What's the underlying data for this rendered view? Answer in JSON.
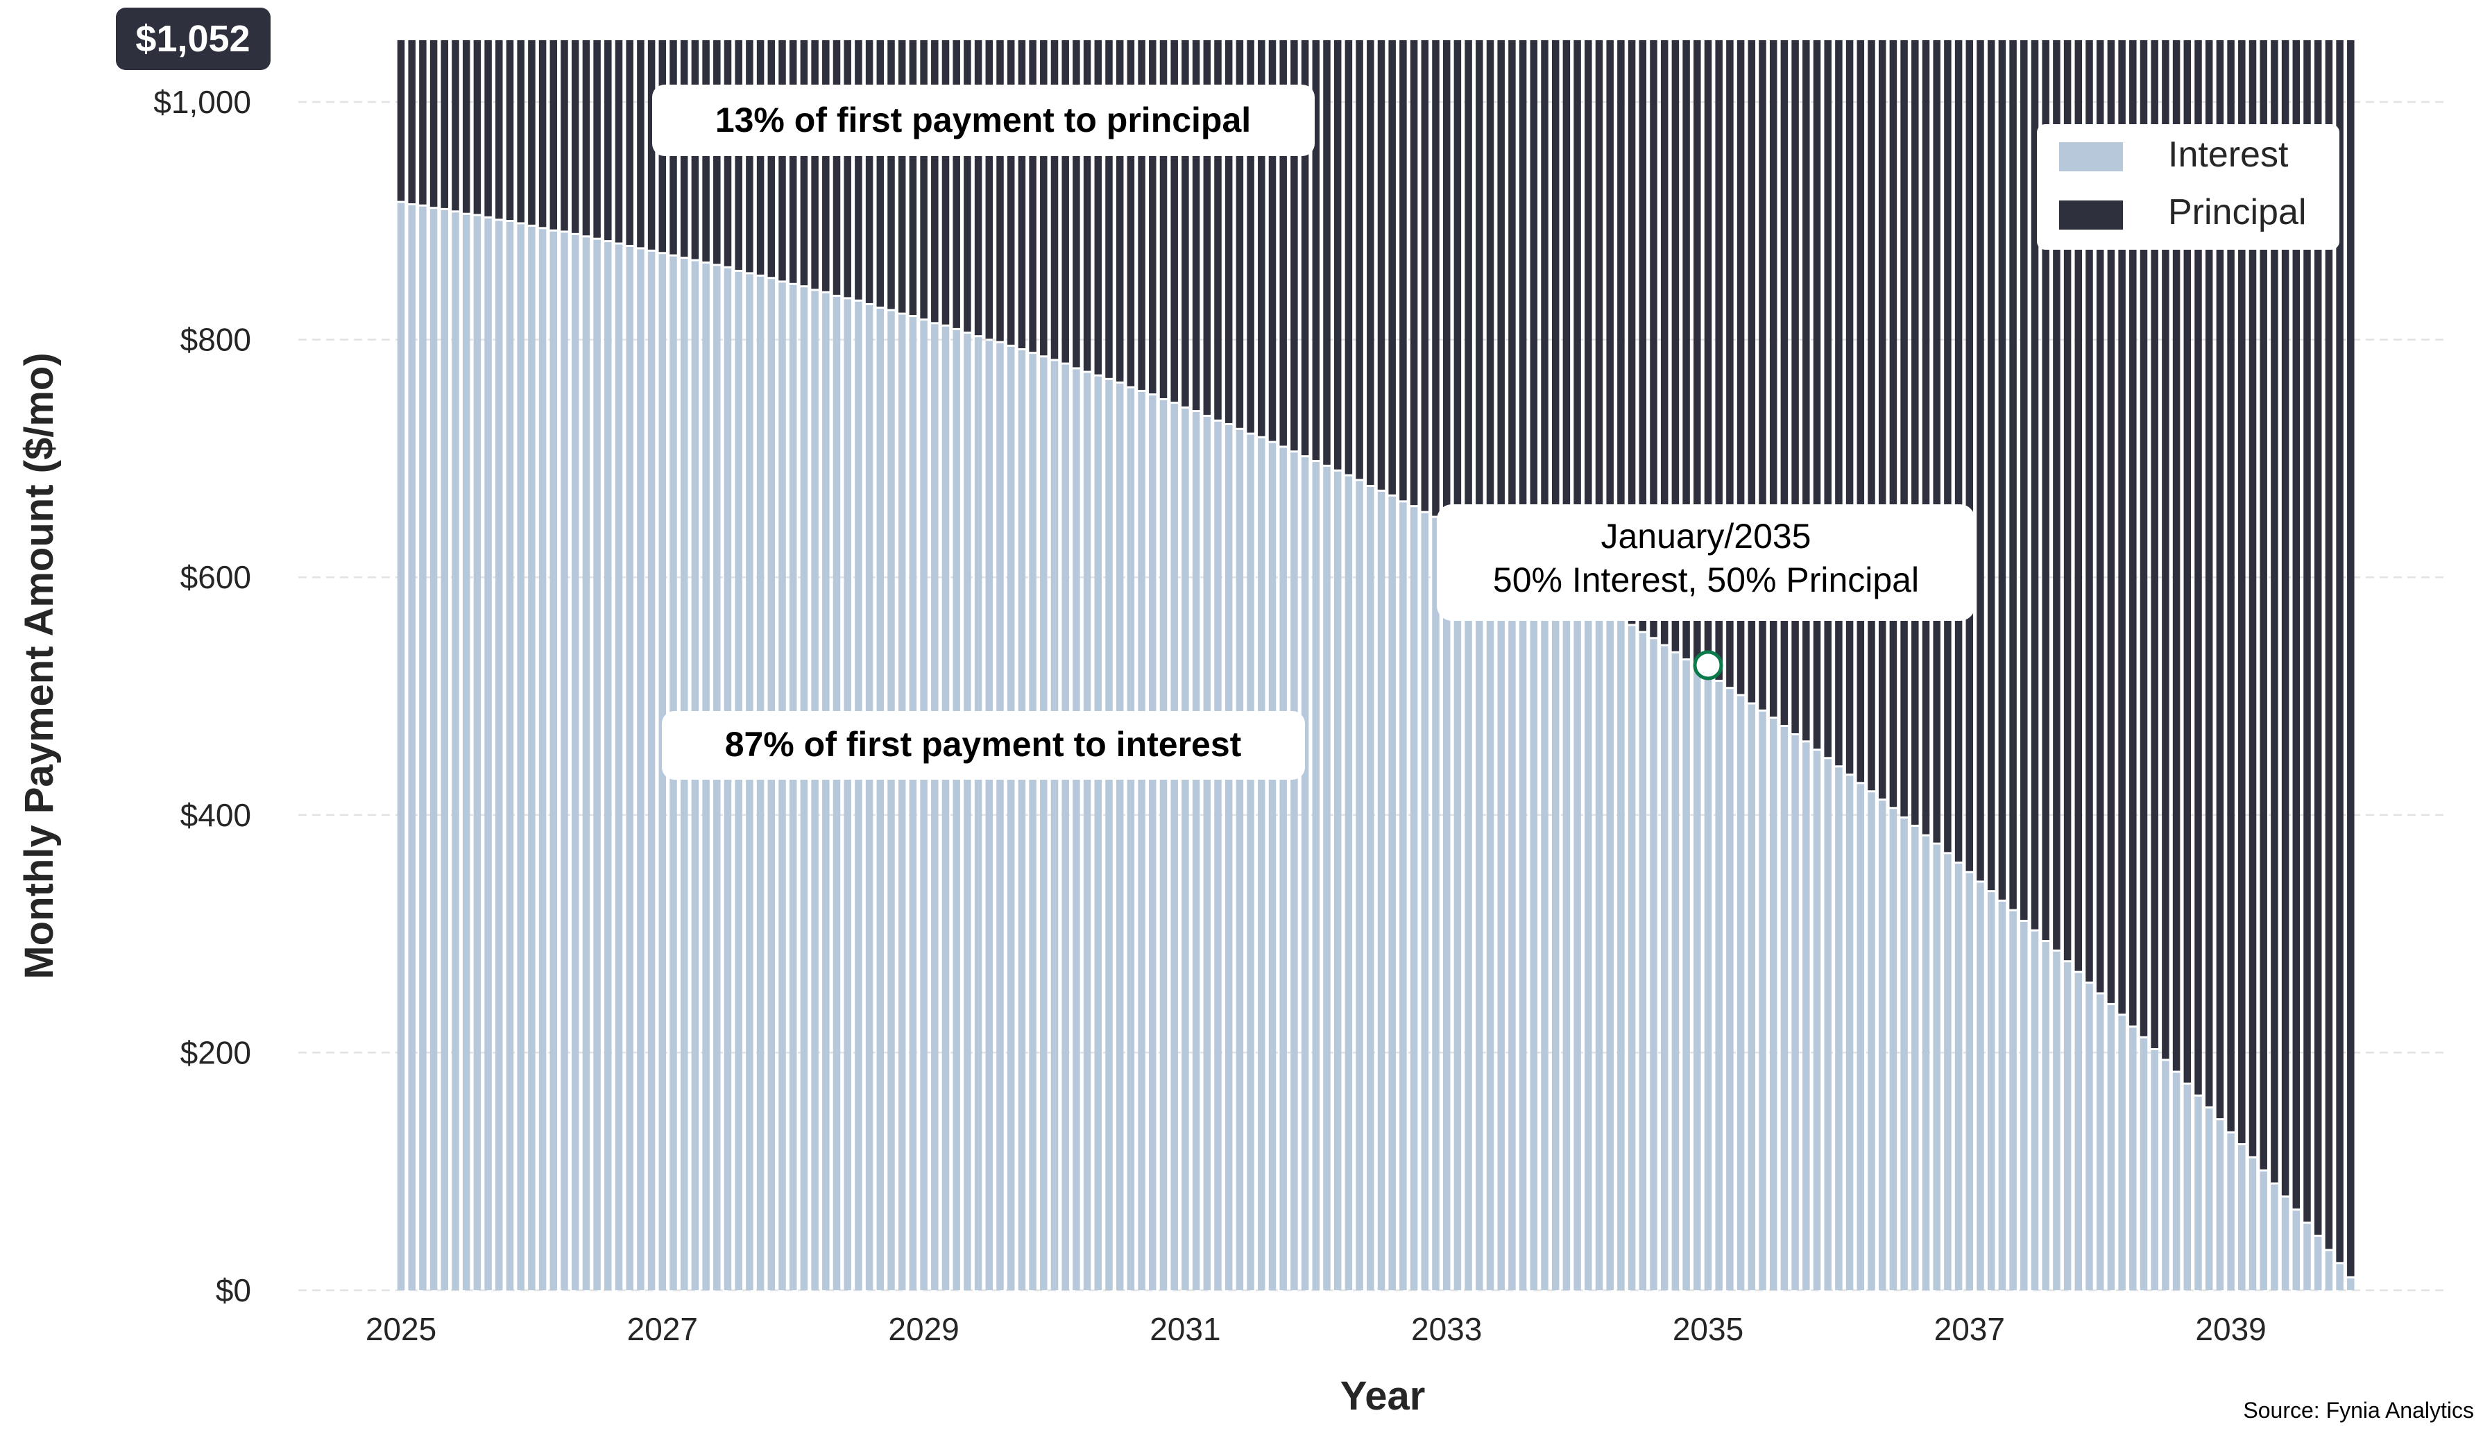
{
  "chart_data": {
    "type": "bar",
    "stacked": true,
    "xlabel": "Year",
    "ylabel": "Monthly Payment Amount ($/mo)",
    "ylim": [
      0,
      1052
    ],
    "yticks": [
      "$0",
      "$200",
      "$400",
      "$600",
      "$800",
      "$1,000"
    ],
    "ytick_values": [
      0,
      200,
      400,
      600,
      800,
      1000
    ],
    "xticks": [
      "2025",
      "2027",
      "2029",
      "2031",
      "2033",
      "2035",
      "2037",
      "2039"
    ],
    "x_start": "2025-01",
    "x_end": "2039-12",
    "grid": "horizontal dashed",
    "legend_position": "top-right",
    "payment": 1052,
    "payment_label": "$1,052",
    "series": [
      {
        "name": "Interest",
        "color": "#b8c8db",
        "values": [
          915,
          913,
          912,
          910,
          909,
          907,
          905,
          904,
          902,
          900,
          899,
          897,
          895,
          893,
          891,
          890,
          888,
          886,
          884,
          882,
          880,
          878,
          876,
          874,
          872,
          870,
          868,
          866,
          864,
          862,
          860,
          857,
          855,
          853,
          851,
          848,
          846,
          844,
          841,
          839,
          836,
          834,
          832,
          829,
          826,
          824,
          821,
          819,
          816,
          813,
          811,
          808,
          805,
          802,
          799,
          797,
          794,
          791,
          788,
          785,
          782,
          779,
          775,
          772,
          769,
          766,
          763,
          759,
          756,
          753,
          749,
          746,
          742,
          739,
          735,
          731,
          728,
          724,
          720,
          717,
          713,
          709,
          705,
          701,
          697,
          693,
          689,
          685,
          681,
          676,
          672,
          668,
          663,
          659,
          654,
          650,
          645,
          641,
          636,
          631,
          626,
          622,
          617,
          612,
          607,
          602,
          596,
          591,
          586,
          581,
          575,
          570,
          564,
          559,
          553,
          548,
          542,
          536,
          530,
          524,
          518,
          512,
          506,
          500,
          493,
          487,
          481,
          474,
          467,
          461,
          454,
          447,
          440,
          433,
          426,
          419,
          412,
          405,
          397,
          390,
          382,
          375,
          367,
          359,
          351,
          343,
          335,
          327,
          319,
          310,
          302,
          293,
          285,
          276,
          267,
          258,
          249,
          240,
          231,
          221,
          212,
          202,
          193,
          183,
          173,
          163,
          153,
          143,
          132,
          122,
          111,
          100,
          89,
          78,
          67,
          56,
          45,
          33,
          22,
          10
        ]
      },
      {
        "name": "Principal",
        "color": "#2f303d",
        "values": [
          137,
          139,
          140,
          142,
          143,
          145,
          147,
          148,
          150,
          152,
          153,
          155,
          157,
          159,
          161,
          162,
          164,
          166,
          168,
          170,
          172,
          174,
          176,
          178,
          180,
          182,
          184,
          186,
          188,
          190,
          192,
          195,
          197,
          199,
          201,
          204,
          206,
          208,
          211,
          213,
          216,
          218,
          220,
          223,
          226,
          228,
          231,
          233,
          236,
          239,
          241,
          244,
          247,
          250,
          253,
          255,
          258,
          261,
          264,
          267,
          270,
          273,
          277,
          280,
          283,
          286,
          289,
          293,
          296,
          299,
          303,
          306,
          310,
          313,
          317,
          321,
          324,
          328,
          332,
          335,
          339,
          343,
          347,
          351,
          355,
          359,
          363,
          367,
          371,
          376,
          380,
          384,
          389,
          393,
          398,
          402,
          407,
          411,
          416,
          421,
          426,
          430,
          435,
          440,
          445,
          450,
          456,
          461,
          466,
          471,
          477,
          482,
          488,
          493,
          499,
          504,
          510,
          516,
          522,
          528,
          534,
          540,
          546,
          552,
          559,
          565,
          571,
          578,
          585,
          591,
          598,
          605,
          612,
          619,
          626,
          633,
          640,
          647,
          655,
          662,
          670,
          677,
          685,
          693,
          701,
          709,
          717,
          725,
          733,
          742,
          750,
          759,
          767,
          776,
          785,
          794,
          803,
          812,
          821,
          831,
          840,
          850,
          859,
          869,
          879,
          889,
          899,
          909,
          920,
          930,
          941,
          952,
          963,
          974,
          985,
          996,
          1007,
          1019,
          1030,
          1042
        ]
      }
    ],
    "annotations": {
      "principal_note": "13% of first payment to principal",
      "interest_note": "87% of first payment to interest",
      "crossover_line1": "January/2035",
      "crossover_line2": "50% Interest, 50% Principal",
      "crossover_month_index": 120,
      "crossover_value": 526,
      "marker_color": "#0b7a4b"
    },
    "source": "Source: Fynia Analytics"
  }
}
